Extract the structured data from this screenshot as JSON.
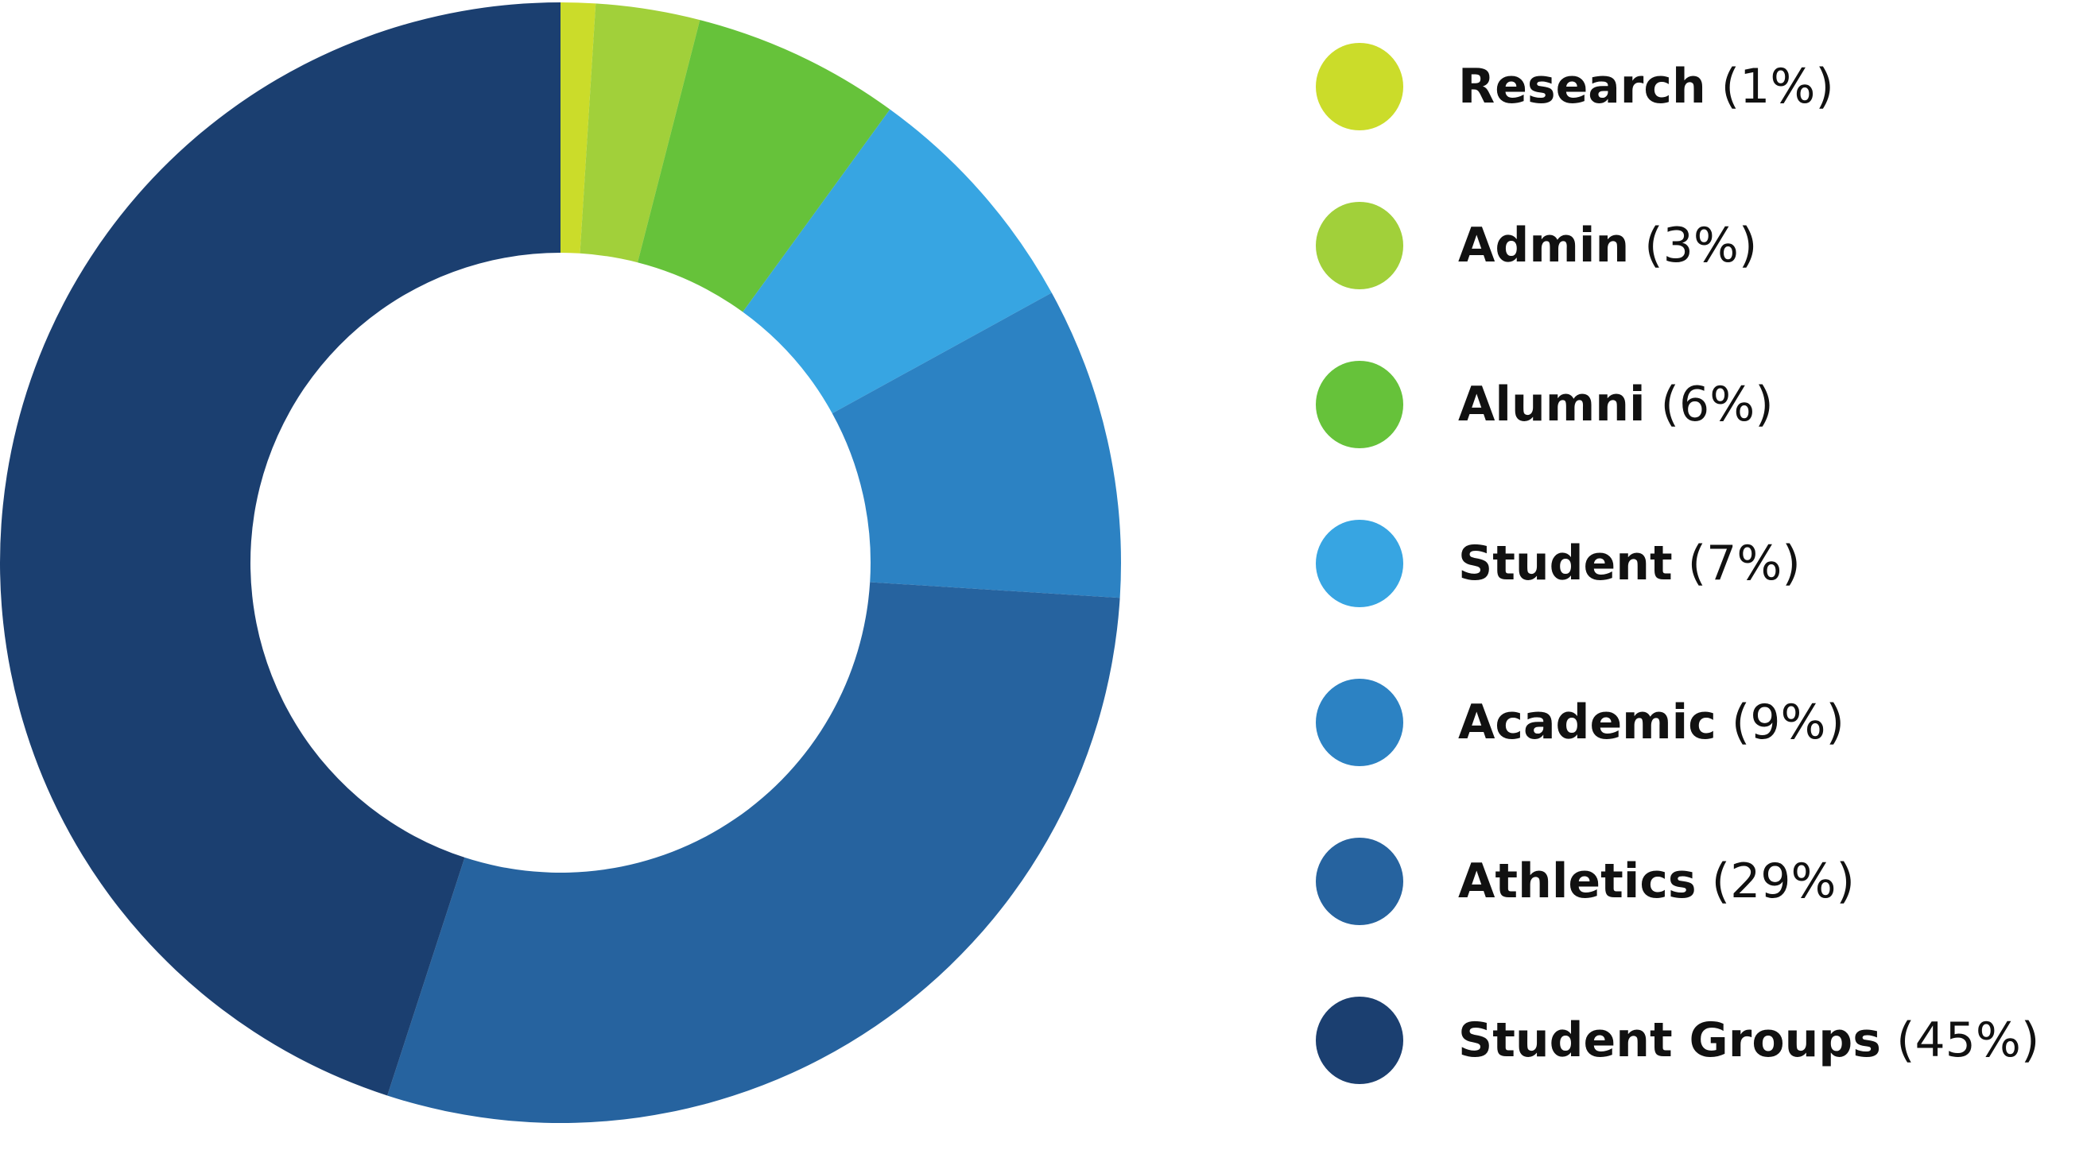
{
  "chart_data": {
    "type": "pie",
    "variant": "donut",
    "slices": [
      {
        "label": "Research",
        "value": 1,
        "pct_label": "(1%)",
        "color": "#cbdc2a"
      },
      {
        "label": "Admin",
        "value": 3,
        "pct_label": "(3%)",
        "color": "#a1d03a"
      },
      {
        "label": "Alumni",
        "value": 6,
        "pct_label": "(6%)",
        "color": "#66c23a"
      },
      {
        "label": "Student",
        "value": 7,
        "pct_label": "(7%)",
        "color": "#37a5e2"
      },
      {
        "label": "Academic",
        "value": 9,
        "pct_label": "(9%)",
        "color": "#2c82c3"
      },
      {
        "label": "Athletics",
        "value": 29,
        "pct_label": "(29%)",
        "color": "#26639f"
      },
      {
        "label": "Student Groups",
        "value": 45,
        "pct_label": "(45%)",
        "color": "#1b3f70"
      }
    ],
    "legend_position": "right"
  }
}
